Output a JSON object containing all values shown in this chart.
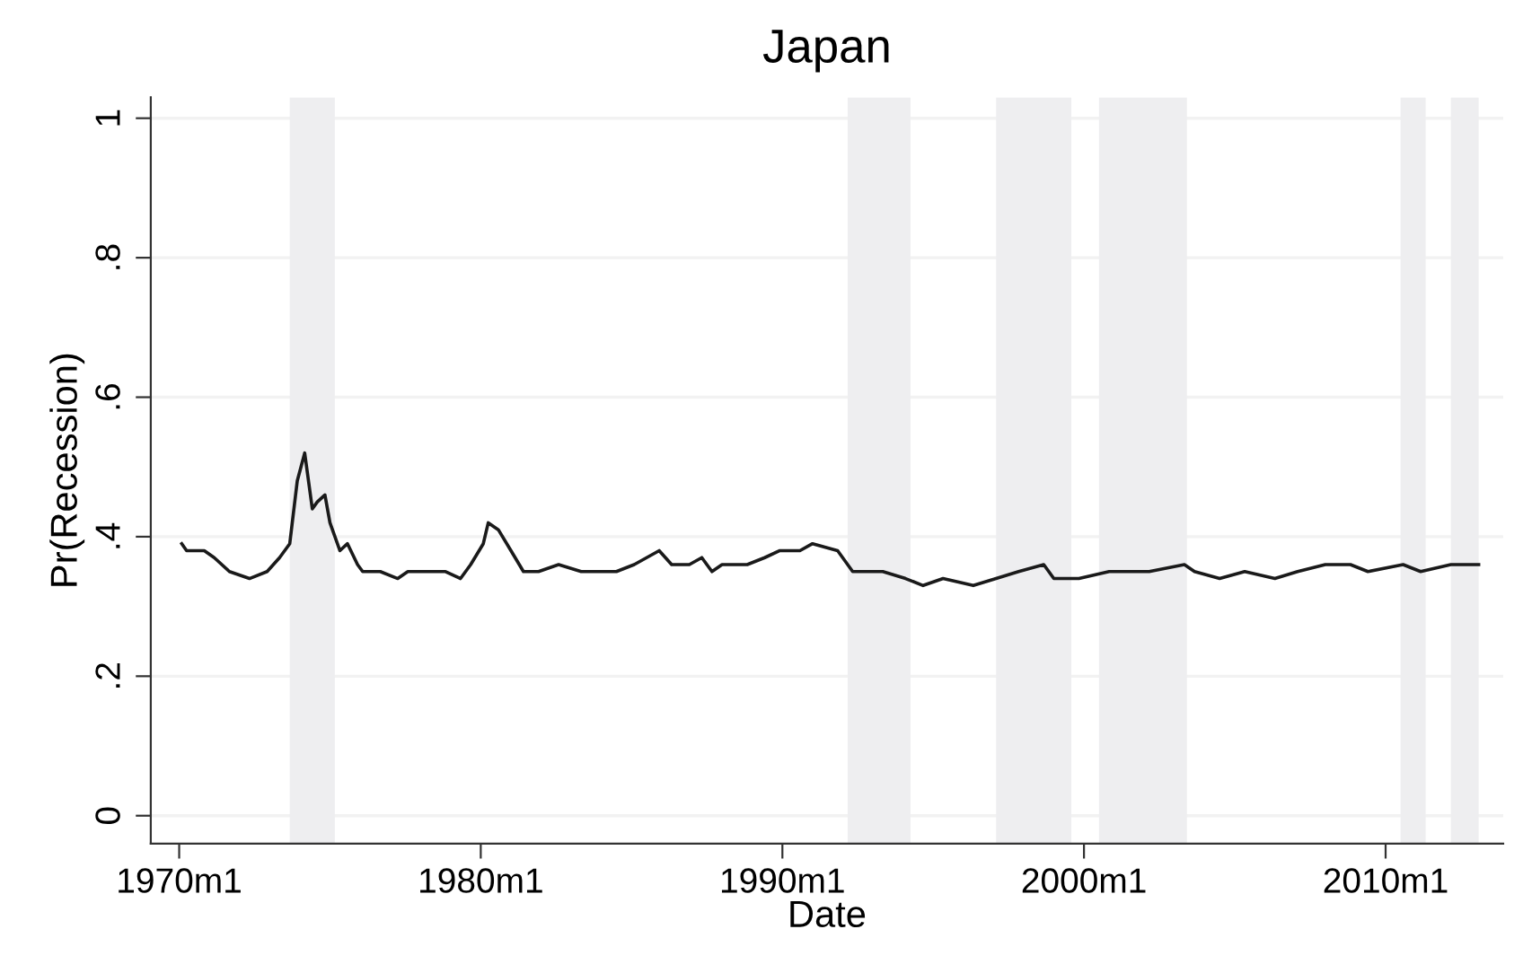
{
  "chart_data": {
    "type": "line",
    "title": "Japan",
    "xlabel": "Date",
    "ylabel": "Pr(Recession)",
    "x": [
      "1970-02",
      "1970-04",
      "1970-11",
      "1971-03",
      "1971-09",
      "1972-05",
      "1972-12",
      "1973-05",
      "1973-09",
      "1973-12",
      "1974-03",
      "1974-06",
      "1974-08",
      "1974-11",
      "1975-01",
      "1975-05",
      "1975-08",
      "1975-12",
      "1976-02",
      "1976-09",
      "1977-04",
      "1977-08",
      "1978-03",
      "1978-11",
      "1979-05",
      "1979-09",
      "1980-02",
      "1980-04",
      "1980-08",
      "1981-01",
      "1981-06",
      "1981-12",
      "1982-08",
      "1983-05",
      "1984-07",
      "1985-02",
      "1985-12",
      "1986-05",
      "1986-12",
      "1987-05",
      "1987-09",
      "1988-01",
      "1988-11",
      "1989-06",
      "1989-12",
      "1990-08",
      "1991-01",
      "1991-11",
      "1992-05",
      "1993-05",
      "1994-02",
      "1994-09",
      "1995-05",
      "1996-05",
      "1997-02",
      "1997-11",
      "1998-09",
      "1999-01",
      "1999-11",
      "2000-11",
      "2002-03",
      "2003-05",
      "2003-09",
      "2004-07",
      "2005-05",
      "2006-05",
      "2007-02",
      "2008-01",
      "2008-11",
      "2009-06",
      "2010-08",
      "2011-03",
      "2012-03",
      "2013-02"
    ],
    "series": [
      {
        "color": "#1a1a1a",
        "values": [
          0.39,
          0.38,
          0.38,
          0.37,
          0.35,
          0.34,
          0.35,
          0.37,
          0.39,
          0.48,
          0.52,
          0.44,
          0.45,
          0.46,
          0.42,
          0.38,
          0.39,
          0.36,
          0.35,
          0.35,
          0.34,
          0.35,
          0.35,
          0.35,
          0.34,
          0.36,
          0.39,
          0.42,
          0.41,
          0.38,
          0.35,
          0.35,
          0.36,
          0.35,
          0.35,
          0.36,
          0.38,
          0.36,
          0.36,
          0.37,
          0.35,
          0.36,
          0.36,
          0.37,
          0.38,
          0.38,
          0.39,
          0.38,
          0.35,
          0.35,
          0.34,
          0.33,
          0.34,
          0.33,
          0.34,
          0.35,
          0.36,
          0.34,
          0.34,
          0.35,
          0.35,
          0.36,
          0.35,
          0.34,
          0.35,
          0.34,
          0.35,
          0.36,
          0.36,
          0.35,
          0.36,
          0.35,
          0.36,
          0.36
        ]
      }
    ],
    "xlim": [
      "1969-01-22",
      "2013-11-25"
    ],
    "ylim": [
      -0.04,
      1.03
    ],
    "xticks": [
      {
        "value": "1970-01",
        "label": "1970m1"
      },
      {
        "value": "1980-01",
        "label": "1980m1"
      },
      {
        "value": "1990-01",
        "label": "1990m1"
      },
      {
        "value": "2000-01",
        "label": "2000m1"
      },
      {
        "value": "2010-01",
        "label": "2010m1"
      }
    ],
    "yticks": [
      0,
      {
        "value": 0.2,
        "label": ".2"
      },
      {
        "value": 0.4,
        "label": ".4"
      },
      {
        "value": 0.6,
        "label": ".6"
      },
      {
        "value": 0.8,
        "label": ".8"
      },
      1
    ],
    "bands": [
      {
        "axis": "x",
        "from": "1973-09",
        "to": "1975-03",
        "color": "#eeeef0"
      },
      {
        "axis": "x",
        "from": "1992-03",
        "to": "1994-04",
        "color": "#eeeef0"
      },
      {
        "axis": "x",
        "from": "1997-02",
        "to": "1999-08",
        "color": "#eeeef0"
      },
      {
        "axis": "x",
        "from": "2000-07",
        "to": "2003-06",
        "color": "#eeeef0"
      },
      {
        "axis": "x",
        "from": "2010-07",
        "to": "2011-05",
        "color": "#eeeef0"
      },
      {
        "axis": "x",
        "from": "2012-03",
        "to": "2013-02",
        "color": "#eeeef0"
      }
    ],
    "grid": "y",
    "marker": "none",
    "line_style": "solid"
  }
}
